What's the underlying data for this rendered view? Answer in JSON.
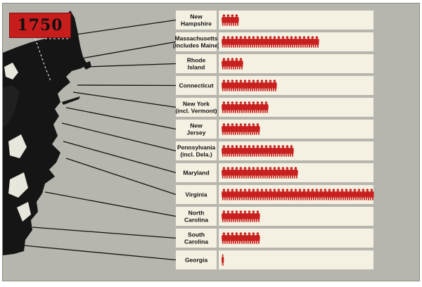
{
  "chart_data": {
    "type": "bar",
    "title": "1750",
    "unit_icon": "colonial-soldier-icon",
    "categories": [
      "New Hampshire",
      "Massachusetts (includes Maine)",
      "Rhode Island",
      "Connecticut",
      "New York (incl. Vermont)",
      "New Jersey",
      "Pennsylvania (incl. Dela.)",
      "Maryland",
      "Virginia",
      "North Carolina",
      "South Carolina",
      "Georgia"
    ],
    "label_lines": [
      [
        "New",
        "Hampshire"
      ],
      [
        "Massachusetts",
        "(includes Maine)"
      ],
      [
        "Rhode",
        "Island"
      ],
      [
        "Connecticut"
      ],
      [
        "New York",
        "(incl. Vermont)"
      ],
      [
        "New",
        "Jersey"
      ],
      [
        "Pennsylvania",
        "(incl. Dela.)"
      ],
      [
        "Maryland"
      ],
      [
        "Virginia"
      ],
      [
        "North",
        "Carolina"
      ],
      [
        "South",
        "Carolina"
      ],
      [
        "Georgia"
      ]
    ],
    "values": [
      4,
      23,
      5,
      13,
      11,
      9,
      17,
      18,
      36,
      9,
      9,
      0.5
    ],
    "colors": {
      "icon": "#c8201e",
      "bar_background": "#f4f1e2",
      "label_background": "#f4f1e2",
      "badge": "#c81d1d",
      "map_land": "#151515",
      "map_water": "#b7b6ae"
    }
  }
}
